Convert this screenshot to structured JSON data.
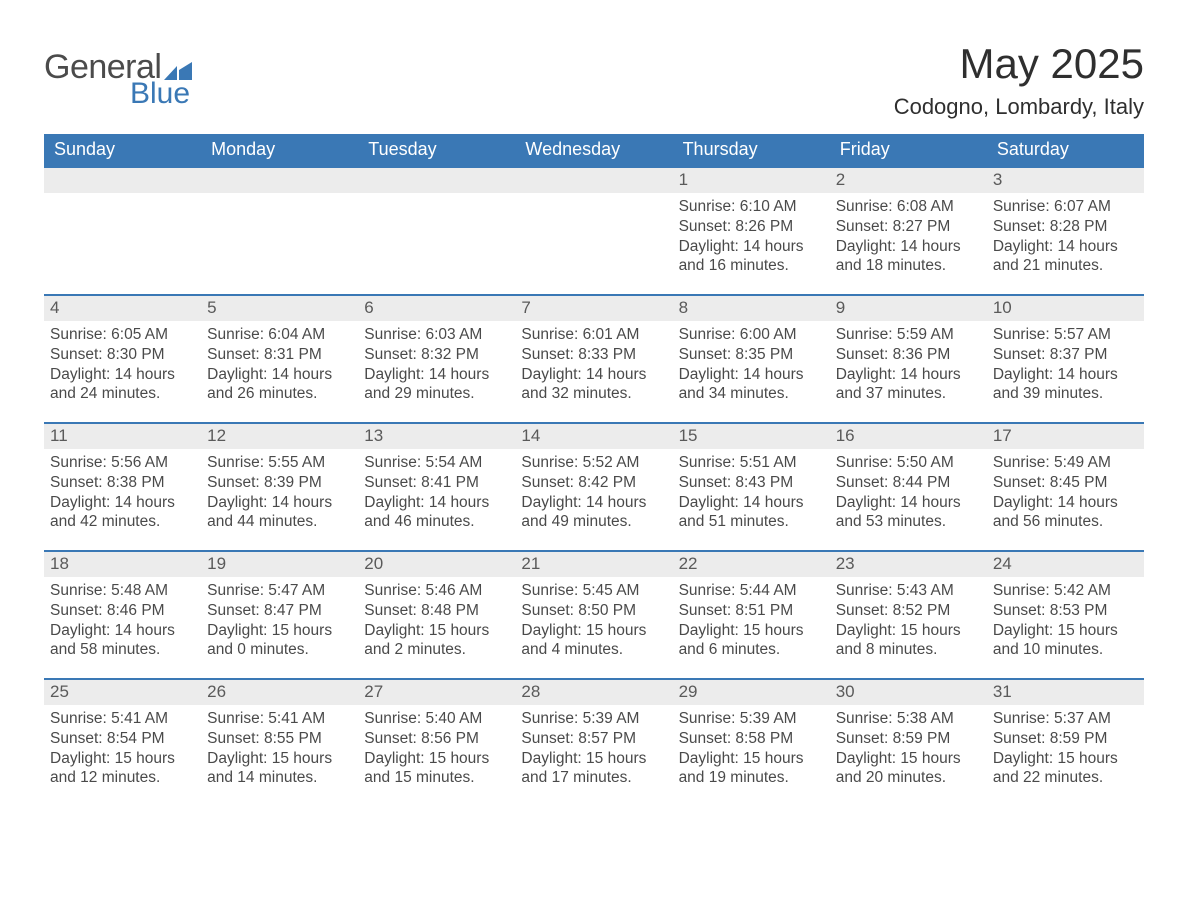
{
  "brand": {
    "general": "General",
    "blue": "Blue"
  },
  "title": "May 2025",
  "location": "Codogno, Lombardy, Italy",
  "colors": {
    "header_bg": "#3a78b5",
    "header_text": "#ffffff",
    "week_border": "#3a78b5",
    "daynum_bg": "#ececec",
    "body_text": "#4a4a4a",
    "page_bg": "#ffffff"
  },
  "daysOfWeek": [
    "Sunday",
    "Monday",
    "Tuesday",
    "Wednesday",
    "Thursday",
    "Friday",
    "Saturday"
  ],
  "weeks": [
    [
      {
        "empty": true
      },
      {
        "empty": true
      },
      {
        "empty": true
      },
      {
        "empty": true
      },
      {
        "n": "1",
        "sunrise": "6:10 AM",
        "sunset": "8:26 PM",
        "dlh": "14",
        "dlm": "16"
      },
      {
        "n": "2",
        "sunrise": "6:08 AM",
        "sunset": "8:27 PM",
        "dlh": "14",
        "dlm": "18"
      },
      {
        "n": "3",
        "sunrise": "6:07 AM",
        "sunset": "8:28 PM",
        "dlh": "14",
        "dlm": "21"
      }
    ],
    [
      {
        "n": "4",
        "sunrise": "6:05 AM",
        "sunset": "8:30 PM",
        "dlh": "14",
        "dlm": "24"
      },
      {
        "n": "5",
        "sunrise": "6:04 AM",
        "sunset": "8:31 PM",
        "dlh": "14",
        "dlm": "26"
      },
      {
        "n": "6",
        "sunrise": "6:03 AM",
        "sunset": "8:32 PM",
        "dlh": "14",
        "dlm": "29"
      },
      {
        "n": "7",
        "sunrise": "6:01 AM",
        "sunset": "8:33 PM",
        "dlh": "14",
        "dlm": "32"
      },
      {
        "n": "8",
        "sunrise": "6:00 AM",
        "sunset": "8:35 PM",
        "dlh": "14",
        "dlm": "34"
      },
      {
        "n": "9",
        "sunrise": "5:59 AM",
        "sunset": "8:36 PM",
        "dlh": "14",
        "dlm": "37"
      },
      {
        "n": "10",
        "sunrise": "5:57 AM",
        "sunset": "8:37 PM",
        "dlh": "14",
        "dlm": "39"
      }
    ],
    [
      {
        "n": "11",
        "sunrise": "5:56 AM",
        "sunset": "8:38 PM",
        "dlh": "14",
        "dlm": "42"
      },
      {
        "n": "12",
        "sunrise": "5:55 AM",
        "sunset": "8:39 PM",
        "dlh": "14",
        "dlm": "44"
      },
      {
        "n": "13",
        "sunrise": "5:54 AM",
        "sunset": "8:41 PM",
        "dlh": "14",
        "dlm": "46"
      },
      {
        "n": "14",
        "sunrise": "5:52 AM",
        "sunset": "8:42 PM",
        "dlh": "14",
        "dlm": "49"
      },
      {
        "n": "15",
        "sunrise": "5:51 AM",
        "sunset": "8:43 PM",
        "dlh": "14",
        "dlm": "51"
      },
      {
        "n": "16",
        "sunrise": "5:50 AM",
        "sunset": "8:44 PM",
        "dlh": "14",
        "dlm": "53"
      },
      {
        "n": "17",
        "sunrise": "5:49 AM",
        "sunset": "8:45 PM",
        "dlh": "14",
        "dlm": "56"
      }
    ],
    [
      {
        "n": "18",
        "sunrise": "5:48 AM",
        "sunset": "8:46 PM",
        "dlh": "14",
        "dlm": "58"
      },
      {
        "n": "19",
        "sunrise": "5:47 AM",
        "sunset": "8:47 PM",
        "dlh": "15",
        "dlm": "0"
      },
      {
        "n": "20",
        "sunrise": "5:46 AM",
        "sunset": "8:48 PM",
        "dlh": "15",
        "dlm": "2"
      },
      {
        "n": "21",
        "sunrise": "5:45 AM",
        "sunset": "8:50 PM",
        "dlh": "15",
        "dlm": "4"
      },
      {
        "n": "22",
        "sunrise": "5:44 AM",
        "sunset": "8:51 PM",
        "dlh": "15",
        "dlm": "6"
      },
      {
        "n": "23",
        "sunrise": "5:43 AM",
        "sunset": "8:52 PM",
        "dlh": "15",
        "dlm": "8"
      },
      {
        "n": "24",
        "sunrise": "5:42 AM",
        "sunset": "8:53 PM",
        "dlh": "15",
        "dlm": "10"
      }
    ],
    [
      {
        "n": "25",
        "sunrise": "5:41 AM",
        "sunset": "8:54 PM",
        "dlh": "15",
        "dlm": "12"
      },
      {
        "n": "26",
        "sunrise": "5:41 AM",
        "sunset": "8:55 PM",
        "dlh": "15",
        "dlm": "14"
      },
      {
        "n": "27",
        "sunrise": "5:40 AM",
        "sunset": "8:56 PM",
        "dlh": "15",
        "dlm": "15"
      },
      {
        "n": "28",
        "sunrise": "5:39 AM",
        "sunset": "8:57 PM",
        "dlh": "15",
        "dlm": "17"
      },
      {
        "n": "29",
        "sunrise": "5:39 AM",
        "sunset": "8:58 PM",
        "dlh": "15",
        "dlm": "19"
      },
      {
        "n": "30",
        "sunrise": "5:38 AM",
        "sunset": "8:59 PM",
        "dlh": "15",
        "dlm": "20"
      },
      {
        "n": "31",
        "sunrise": "5:37 AM",
        "sunset": "8:59 PM",
        "dlh": "15",
        "dlm": "22"
      }
    ]
  ],
  "labels": {
    "sunrise": "Sunrise:",
    "sunset": "Sunset:",
    "daylight_pre": "Daylight:",
    "hours_word": "hours",
    "and_word": "and",
    "minutes_word": "minutes."
  }
}
